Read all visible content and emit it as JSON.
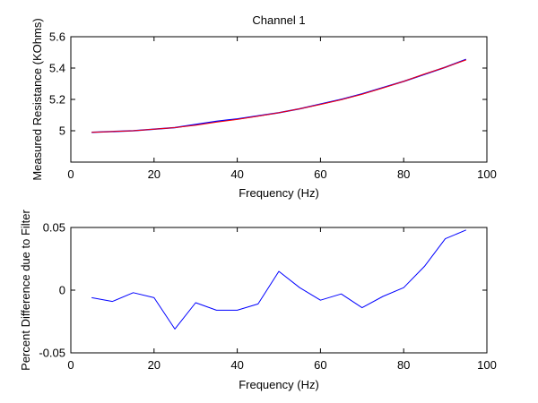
{
  "chart_data": [
    {
      "type": "line",
      "title": "Channel 1",
      "xlabel": "Frequency (Hz)",
      "ylabel": "Measured Resistance (KOhms)",
      "xlim": [
        0,
        100
      ],
      "ylim": [
        4.8,
        5.6
      ],
      "xticks": [
        "0",
        "20",
        "40",
        "60",
        "80",
        "100"
      ],
      "yticks": [
        "5",
        "5.2",
        "5.4",
        "5.6"
      ],
      "grid": false,
      "x": [
        5,
        10,
        15,
        20,
        25,
        30,
        35,
        40,
        45,
        50,
        55,
        60,
        65,
        70,
        75,
        80,
        85,
        90,
        95
      ],
      "series": [
        {
          "color": "#0000ff",
          "values": [
            4.99,
            4.995,
            5.0,
            5.01,
            5.02,
            5.04,
            5.06,
            5.075,
            5.095,
            5.115,
            5.14,
            5.17,
            5.2,
            5.235,
            5.275,
            5.315,
            5.36,
            5.405,
            5.455
          ]
        },
        {
          "color": "#ff0000",
          "values": [
            4.99,
            4.995,
            5.0,
            5.01,
            5.02,
            5.035,
            5.055,
            5.072,
            5.093,
            5.115,
            5.14,
            5.168,
            5.198,
            5.233,
            5.273,
            5.315,
            5.362,
            5.405,
            5.452
          ]
        }
      ]
    },
    {
      "type": "line",
      "xlabel": "Frequency (Hz)",
      "ylabel": "Percent Difference due to Filter",
      "xlim": [
        0,
        100
      ],
      "ylim": [
        -0.05,
        0.05
      ],
      "xticks": [
        "0",
        "20",
        "40",
        "60",
        "80",
        "100"
      ],
      "yticks": [
        "-0.05",
        "0",
        "0.05"
      ],
      "grid": false,
      "x": [
        5,
        10,
        15,
        20,
        25,
        30,
        35,
        40,
        45,
        50,
        55,
        60,
        65,
        70,
        75,
        80,
        85,
        90,
        95
      ],
      "series": [
        {
          "color": "#0000ff",
          "values": [
            -0.006,
            -0.009,
            -0.002,
            -0.006,
            -0.031,
            -0.01,
            -0.016,
            -0.016,
            -0.011,
            0.015,
            0.002,
            -0.008,
            -0.003,
            -0.014,
            -0.005,
            0.002,
            0.019,
            0.041,
            0.048
          ]
        }
      ]
    }
  ]
}
